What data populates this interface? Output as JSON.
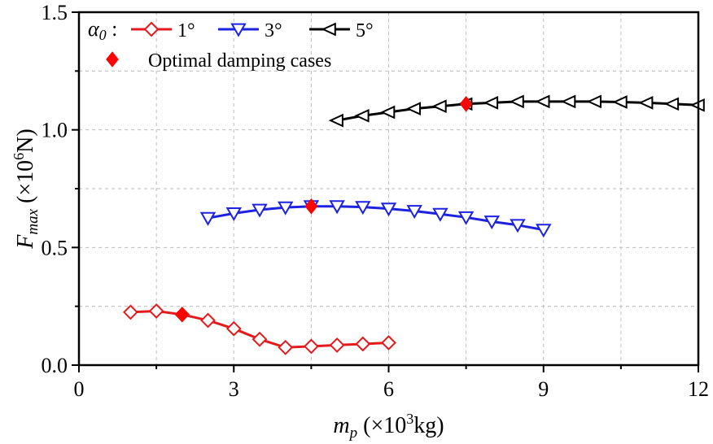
{
  "chart_data": {
    "type": "line",
    "xlabel": {
      "main": "m",
      "sub": "p",
      "unit_pre": " (×10",
      "unit_sup": "3",
      "unit_post": "kg)"
    },
    "ylabel": {
      "main": "F",
      "sub": "max",
      "unit_pre": " (×10",
      "unit_sup": "6",
      "unit_post": "N)"
    },
    "xlim": [
      0,
      12
    ],
    "ylim": [
      0,
      1.5
    ],
    "xticks": [
      0,
      3,
      6,
      9,
      12
    ],
    "yticks": [
      0.0,
      0.5,
      1.0,
      1.5
    ],
    "xtick_labels": [
      "0",
      "3",
      "6",
      "9",
      "12"
    ],
    "ytick_labels": [
      "0.0",
      "0.5",
      "1.0",
      "1.5"
    ],
    "grid": true,
    "legend": {
      "placement": "top-left",
      "param_symbol": "α",
      "param_sub": "0",
      "param_colon": " :",
      "optimal_label": "Optimal damping cases"
    },
    "series": [
      {
        "name": "1°",
        "color": "#e41a1c",
        "marker": "diamond-open",
        "x": [
          1.0,
          1.5,
          2.0,
          2.5,
          3.0,
          3.5,
          4.0,
          4.5,
          5.0,
          5.5,
          6.0
        ],
        "y": [
          0.225,
          0.23,
          0.215,
          0.19,
          0.155,
          0.11,
          0.075,
          0.08,
          0.085,
          0.09,
          0.095
        ]
      },
      {
        "name": "3°",
        "color": "#1d22e0",
        "marker": "triangle-down-open",
        "x": [
          2.5,
          3.0,
          3.5,
          4.0,
          4.5,
          5.0,
          5.5,
          6.0,
          6.5,
          7.0,
          7.5,
          8.0,
          8.5,
          9.0
        ],
        "y": [
          0.625,
          0.645,
          0.66,
          0.67,
          0.675,
          0.675,
          0.672,
          0.665,
          0.655,
          0.642,
          0.628,
          0.61,
          0.595,
          0.575
        ]
      },
      {
        "name": "5°",
        "color": "#000000",
        "marker": "triangle-left-open",
        "x": [
          5.0,
          5.5,
          6.0,
          6.5,
          7.0,
          7.5,
          8.0,
          8.5,
          9.0,
          9.5,
          10.0,
          10.5,
          11.0,
          11.5,
          12.0
        ],
        "y": [
          1.04,
          1.06,
          1.075,
          1.09,
          1.1,
          1.11,
          1.115,
          1.12,
          1.12,
          1.12,
          1.12,
          1.118,
          1.115,
          1.11,
          1.105
        ]
      }
    ],
    "optimal_points": [
      {
        "series": "1°",
        "x": 2.0,
        "y": 0.215
      },
      {
        "series": "3°",
        "x": 4.5,
        "y": 0.675
      },
      {
        "series": "5°",
        "x": 7.5,
        "y": 1.11
      }
    ],
    "optimal_color": "#ff0000"
  }
}
